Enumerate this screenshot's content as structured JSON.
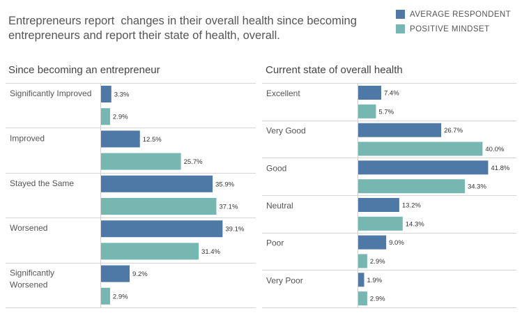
{
  "title": "Entrepreneurs report  changes in their overall health since becoming entrepreneurs and report their state of health, overall.",
  "legend": [
    {
      "label": "AVERAGE RESPONDENT",
      "color": "#4e79a7"
    },
    {
      "label": "POSITIVE MINDSET",
      "color": "#76b7b2"
    }
  ],
  "chart_data": [
    {
      "type": "bar",
      "orientation": "horizontal",
      "title": "Since becoming an entrepreneur",
      "categories": [
        "Significantly Improved",
        "Improved",
        "Stayed the Same",
        "Worsened",
        "Significantly Worsened"
      ],
      "category_lines": [
        [
          "Significantly Improved"
        ],
        [
          "Improved"
        ],
        [
          "Stayed the Same"
        ],
        [
          "Worsened"
        ],
        [
          "Significantly",
          "Worsened"
        ]
      ],
      "series": [
        {
          "name": "AVERAGE RESPONDENT",
          "values": [
            3.3,
            12.5,
            35.9,
            39.1,
            9.2
          ],
          "labels": [
            "3.3%",
            "12.5%",
            "35.9%",
            "39.1%",
            "9.2%"
          ]
        },
        {
          "name": "POSITIVE MINDSET",
          "values": [
            2.9,
            25.7,
            37.1,
            31.4,
            2.9
          ],
          "labels": [
            "2.9%",
            "25.7%",
            "37.1%",
            "31.4%",
            "2.9%"
          ]
        }
      ],
      "xlim": [
        0,
        45
      ]
    },
    {
      "type": "bar",
      "orientation": "horizontal",
      "title": "Current state of overall health",
      "categories": [
        "Excellent",
        "Very Good",
        "Good",
        "Neutral",
        "Poor",
        "Very Poor"
      ],
      "category_lines": [
        [
          "Excellent"
        ],
        [
          "Very Good"
        ],
        [
          "Good"
        ],
        [
          "Neutral"
        ],
        [
          "Poor"
        ],
        [
          "Very Poor"
        ]
      ],
      "series": [
        {
          "name": "AVERAGE RESPONDENT",
          "values": [
            7.4,
            26.7,
            41.8,
            13.2,
            9.0,
            1.9
          ],
          "labels": [
            "7.4%",
            "26.7%",
            "41.8%",
            "13.2%",
            "9.0%",
            "1.9%"
          ]
        },
        {
          "name": "POSITIVE MINDSET",
          "values": [
            5.7,
            40.0,
            34.3,
            14.3,
            2.9,
            2.9
          ],
          "labels": [
            "5.7%",
            "40.0%",
            "34.3%",
            "14.3%",
            "2.9%",
            "2.9%"
          ]
        }
      ],
      "xlim": [
        0,
        45
      ]
    }
  ]
}
